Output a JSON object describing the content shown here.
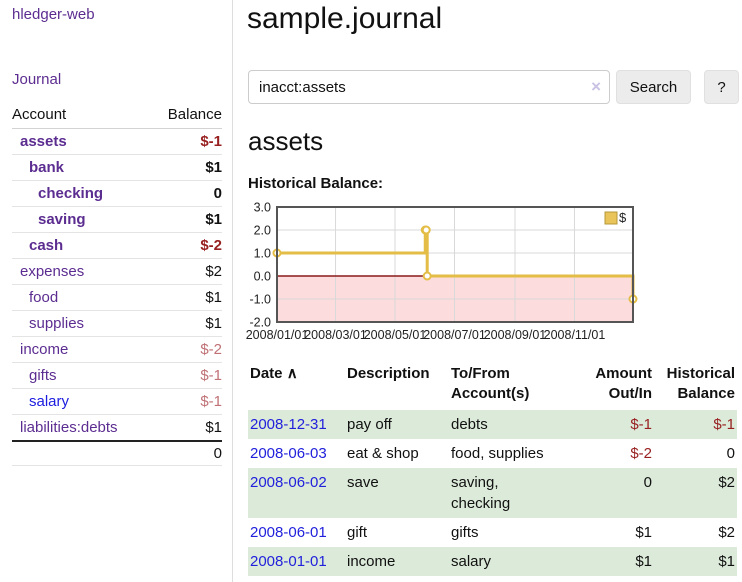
{
  "app": {
    "brand": "hledger-web"
  },
  "sidebar": {
    "journal_link": "Journal",
    "accounts": {
      "col_account": "Account",
      "col_balance": "Balance",
      "rows": [
        {
          "name": "assets",
          "balance": "$-1",
          "indent": 1,
          "bold": true,
          "negative": true,
          "muted": false,
          "blue": false
        },
        {
          "name": "bank",
          "balance": "$1",
          "indent": 2,
          "bold": true,
          "negative": false,
          "muted": false,
          "blue": false
        },
        {
          "name": "checking",
          "balance": "0",
          "indent": 3,
          "bold": true,
          "negative": false,
          "muted": false,
          "blue": false
        },
        {
          "name": "saving",
          "balance": "$1",
          "indent": 3,
          "bold": true,
          "negative": false,
          "muted": false,
          "blue": false
        },
        {
          "name": "cash",
          "balance": "$-2",
          "indent": 2,
          "bold": true,
          "negative": true,
          "muted": false,
          "blue": false
        },
        {
          "name": "expenses",
          "balance": "$2",
          "indent": 1,
          "bold": false,
          "negative": false,
          "muted": false,
          "blue": false
        },
        {
          "name": "food",
          "balance": "$1",
          "indent": 2,
          "bold": false,
          "negative": false,
          "muted": false,
          "blue": false
        },
        {
          "name": "supplies",
          "balance": "$1",
          "indent": 2,
          "bold": false,
          "negative": false,
          "muted": false,
          "blue": false
        },
        {
          "name": "income",
          "balance": "$-2",
          "indent": 1,
          "bold": false,
          "negative": true,
          "muted": true,
          "blue": false
        },
        {
          "name": "gifts",
          "balance": "$-1",
          "indent": 2,
          "bold": false,
          "negative": true,
          "muted": true,
          "blue": false
        },
        {
          "name": "salary",
          "balance": "$-1",
          "indent": 2,
          "bold": false,
          "negative": true,
          "muted": true,
          "blue": true
        },
        {
          "name": "liabilities:debts",
          "balance": "$1",
          "indent": 1,
          "bold": false,
          "negative": false,
          "muted": false,
          "blue": false
        }
      ],
      "total": "0"
    }
  },
  "main": {
    "title": "sample.journal",
    "search": {
      "value": "inacct:assets",
      "clear_icon": "×",
      "search_button": "Search",
      "help_button": "?"
    },
    "account_title": "assets",
    "section_label": "Historical Balance:"
  },
  "chart_data": {
    "type": "line",
    "step": "after",
    "series": [
      {
        "name": "$",
        "x": [
          "2008-01-01",
          "2008-06-01",
          "2008-06-02",
          "2008-06-03",
          "2008-12-31"
        ],
        "values": [
          1,
          2,
          2,
          0,
          -1
        ]
      }
    ],
    "x_range": [
      "2008-01-01",
      "2008-12-31"
    ],
    "ylim": [
      -2,
      3
    ],
    "yticks": [
      3,
      2,
      1,
      0,
      -1,
      -2
    ],
    "ytick_labels": [
      "3.0",
      "2.0",
      "1.0",
      "0.0",
      "-1.0",
      "-2.0"
    ],
    "xtick_dates": [
      "2008-01-01",
      "2008-03-01",
      "2008-05-01",
      "2008-07-01",
      "2008-09-01",
      "2008-11-01"
    ],
    "xtick_labels": [
      "2008/01/01",
      "2008/03/01",
      "2008/05/01",
      "2008/07/01",
      "2008/09/01",
      "2008/11/01"
    ],
    "legend": {
      "label": "$",
      "position": "top-right"
    },
    "grid": true,
    "colors": {
      "line": "#e3bd45",
      "marker_fill": "#ffffff",
      "negative_region": "#fcdcdc",
      "zero_line": "#8b1a1a",
      "grid": "#d9d9d9",
      "border": "#555555",
      "legend_swatch": "#e9c45a",
      "legend_swatch_border": "#b5983a"
    }
  },
  "transactions": {
    "headers": {
      "date": "Date",
      "description": "Description",
      "accounts": "To/From Account(s)",
      "amount": "Amount Out/In",
      "balance": "Historical Balance"
    },
    "sort_indicator": "∧",
    "rows": [
      {
        "date": "2008-12-31",
        "description": "pay off",
        "accounts": "debts",
        "amount": "$-1",
        "amount_negative": true,
        "balance": "$-1",
        "balance_negative": true
      },
      {
        "date": "2008-06-03",
        "description": "eat & shop",
        "accounts": "food, supplies",
        "amount": "$-2",
        "amount_negative": true,
        "balance": "0",
        "balance_negative": false
      },
      {
        "date": "2008-06-02",
        "description": "save",
        "accounts": "saving,\nchecking",
        "amount": "0",
        "amount_negative": false,
        "balance": "$2",
        "balance_negative": false
      },
      {
        "date": "2008-06-01",
        "description": "gift",
        "accounts": "gifts",
        "amount": "$1",
        "amount_negative": false,
        "balance": "$2",
        "balance_negative": false
      },
      {
        "date": "2008-01-01",
        "description": "income",
        "accounts": "salary",
        "amount": "$1",
        "amount_negative": false,
        "balance": "$1",
        "balance_negative": false
      }
    ]
  },
  "colors": {
    "accent_purple": "#5c2d91",
    "link_blue": "#2121dc",
    "negative_strong": "#971f1f",
    "negative_muted": "#bf7176",
    "row_green": "#dcead9"
  }
}
